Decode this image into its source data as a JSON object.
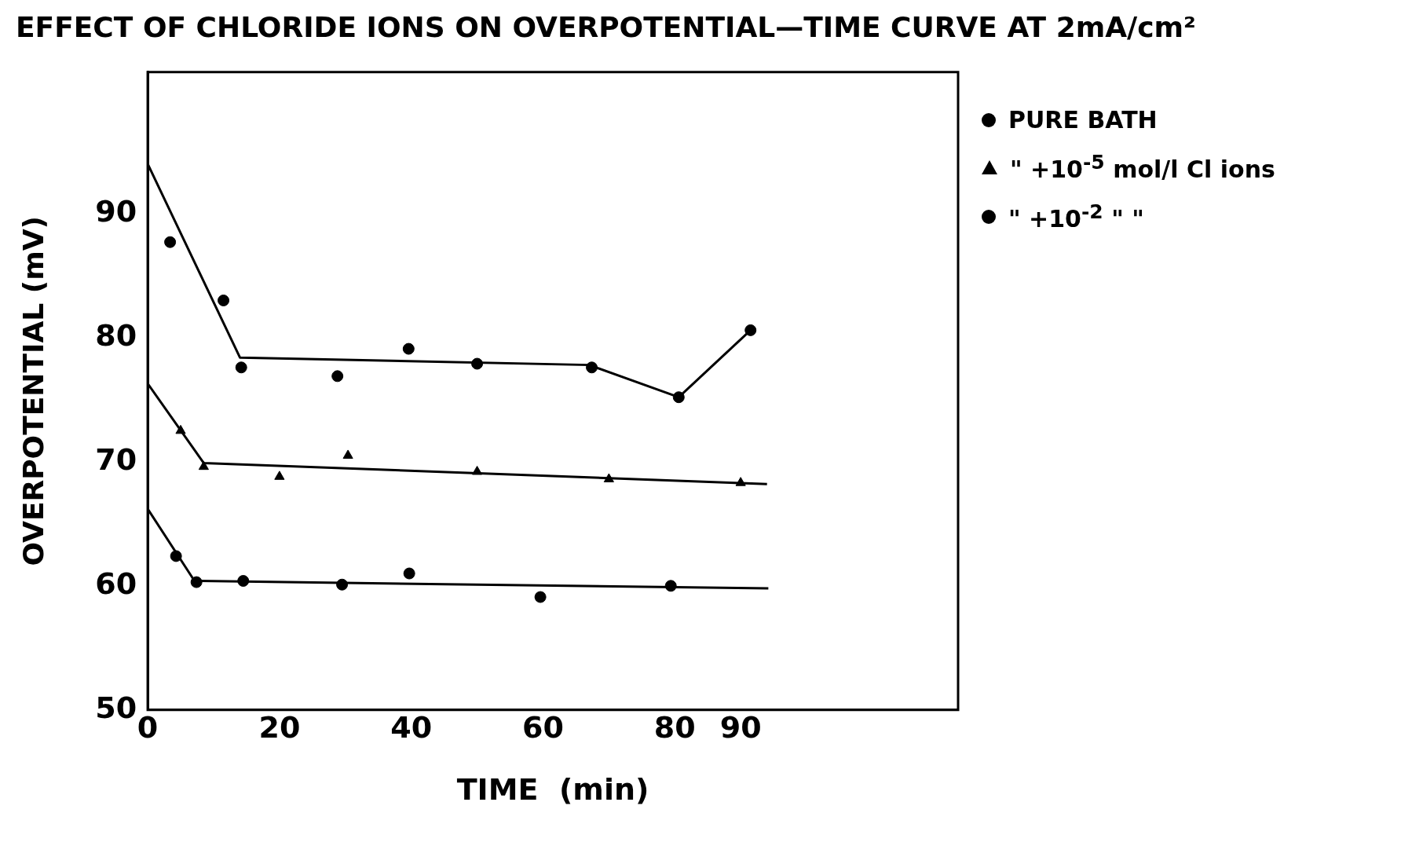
{
  "chart_data": {
    "type": "scatter",
    "title": "EFFECT OF CHLORIDE IONS ON OVERPOTENTIAL—TIME CURVE AT 2mA/cm²",
    "xlabel": "TIME  (min)",
    "ylabel": "OVERPOTENTIAL (mV)",
    "xlim": [
      0,
      123
    ],
    "xticks": [
      0,
      20,
      40,
      60,
      80,
      90
    ],
    "ylim": [
      50,
      101.4
    ],
    "yticks": [
      50,
      60,
      70,
      80,
      90
    ],
    "grid": false,
    "legend": "top right",
    "series": [
      {
        "name": "PURE BATH",
        "color": "#000000",
        "marker": "circle",
        "x": [
          4.3,
          7.4,
          14.5,
          29.5,
          39.7,
          59.6,
          79.4
        ],
        "values": [
          62.4,
          60.3,
          60.4,
          60.1,
          61.0,
          59.1,
          60.0
        ]
      },
      {
        "name": "\" +10$^{-5}$ mol/l Cl ions",
        "color": "#000000",
        "marker": "triangle",
        "x": [
          5,
          8.5,
          20,
          30.4,
          50,
          70,
          90
        ],
        "values": [
          72.5,
          69.6,
          68.8,
          70.5,
          69.2,
          68.6,
          68.3
        ]
      },
      {
        "name": "\" +10$^{-2}$ \"  \"",
        "color": "#000000",
        "marker": "circle",
        "x": [
          3.4,
          11.5,
          14.2,
          28.8,
          39.6,
          50,
          67.4,
          80.6,
          91.5
        ],
        "values": [
          87.7,
          83.0,
          77.6,
          76.9,
          79.1,
          77.9,
          77.6,
          75.2,
          80.6
        ]
      },
      {
        "type": "line",
        "color": "#000000",
        "marker": "none",
        "x": [
          0,
          7.1,
          94.2
        ],
        "values": [
          66.2,
          60.4,
          59.8
        ]
      },
      {
        "type": "line",
        "color": "#000000",
        "marker": "none",
        "x": [
          0,
          8.5,
          94
        ],
        "values": [
          76.3,
          69.9,
          68.2
        ]
      },
      {
        "type": "line",
        "color": "#000000",
        "marker": "none",
        "x": [
          0,
          14,
          67,
          80.6,
          91.5
        ],
        "values": [
          94,
          78.4,
          77.8,
          75.2,
          80.6
        ]
      }
    ]
  }
}
